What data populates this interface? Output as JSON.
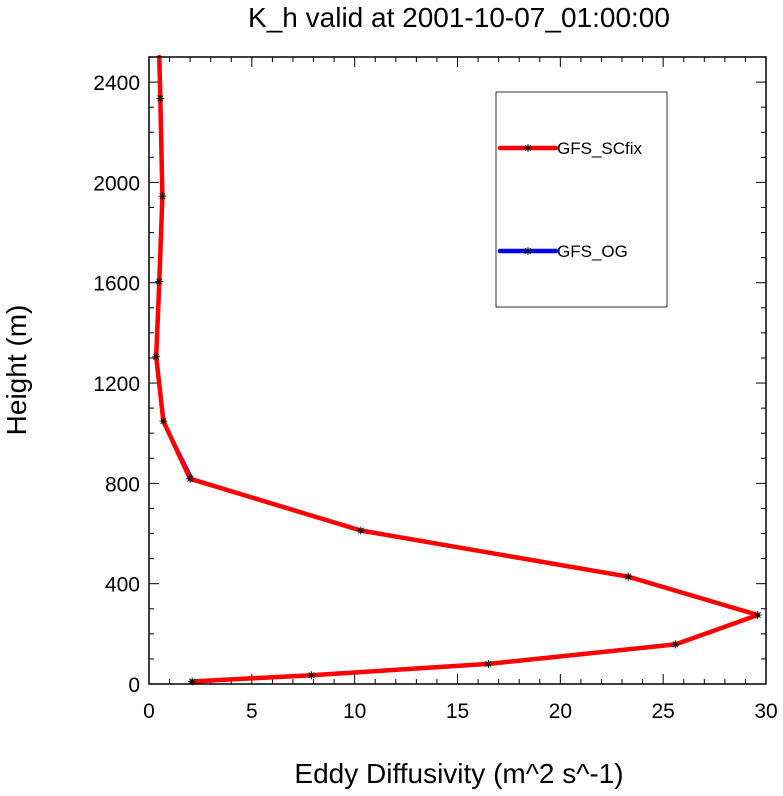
{
  "chart_data": {
    "type": "line",
    "title": "K_h valid at 2001-10-07_01:00:00",
    "xlabel": "Eddy Diffusivity (m^2 s^-1)",
    "ylabel": "Height (m)",
    "xlim": [
      0,
      30
    ],
    "ylim": [
      0,
      2500
    ],
    "xticks": [
      0,
      5,
      10,
      15,
      20,
      25,
      30
    ],
    "xtick_labels": [
      "0",
      "5",
      "10",
      "15",
      "20",
      "25",
      "30"
    ],
    "yticks": [
      0,
      400,
      800,
      1200,
      1600,
      2000,
      2400
    ],
    "ytick_labels": [
      "0",
      "400",
      "800",
      "1200",
      "1600",
      "2000",
      "2400"
    ],
    "grid": false,
    "legend_position": "top-right",
    "series": [
      {
        "name": "GFS_OG",
        "color": "#0000ff",
        "marker": "asterisk",
        "points": [
          {
            "x": 2.1,
            "y": 10
          },
          {
            "x": 7.9,
            "y": 35
          },
          {
            "x": 16.5,
            "y": 80
          },
          {
            "x": 25.6,
            "y": 158
          },
          {
            "x": 29.6,
            "y": 275
          },
          {
            "x": 23.3,
            "y": 428
          },
          {
            "x": 10.3,
            "y": 612
          },
          {
            "x": 2.1,
            "y": 818
          },
          {
            "x": 0.7,
            "y": 1048
          },
          {
            "x": 0.35,
            "y": 1305
          },
          {
            "x": 0.5,
            "y": 1605
          },
          {
            "x": 0.65,
            "y": 1945
          },
          {
            "x": 0.55,
            "y": 2335
          },
          {
            "x": 0.5,
            "y": 2500
          }
        ]
      },
      {
        "name": "GFS_SCfix",
        "color": "#ff0000",
        "marker": "asterisk",
        "points": [
          {
            "x": 2.1,
            "y": 10
          },
          {
            "x": 7.9,
            "y": 35
          },
          {
            "x": 16.5,
            "y": 80
          },
          {
            "x": 25.6,
            "y": 158
          },
          {
            "x": 29.6,
            "y": 275
          },
          {
            "x": 23.3,
            "y": 428
          },
          {
            "x": 10.3,
            "y": 612
          },
          {
            "x": 2.0,
            "y": 818
          },
          {
            "x": 0.7,
            "y": 1048
          },
          {
            "x": 0.35,
            "y": 1305
          },
          {
            "x": 0.5,
            "y": 1605
          },
          {
            "x": 0.65,
            "y": 1945
          },
          {
            "x": 0.55,
            "y": 2335
          },
          {
            "x": 0.5,
            "y": 2500
          }
        ]
      }
    ],
    "legend": [
      {
        "label": "GFS_SCfix",
        "color": "#ff0000"
      },
      {
        "label": "GFS_OG",
        "color": "#0000ff"
      }
    ]
  }
}
